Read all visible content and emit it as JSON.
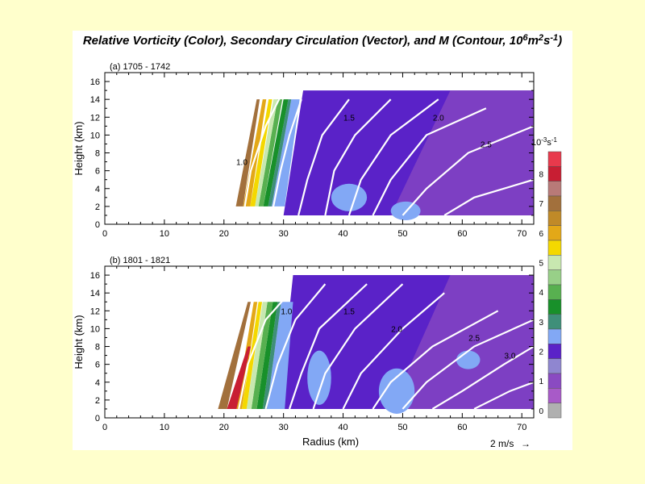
{
  "title": {
    "main": "Relative Vorticity (Color), Secondary Circulation (Vector), and M (Contour, 10",
    "exp1": "6",
    "mid": "m",
    "exp2": "2",
    "s": "s",
    "exp3": "-1",
    "end": ")"
  },
  "xlabel": "Radius (km)",
  "ylabel": "Height (km)",
  "vector_ref": {
    "label": "2 m/s",
    "arrow": "→"
  },
  "colorbar": {
    "unit_base": "10",
    "unit_exp": "-3",
    "unit_s": "s",
    "unit_s_exp": "-1",
    "levels": [
      "8",
      "7",
      "6",
      "5",
      "4",
      "3",
      "2",
      "1",
      "0"
    ],
    "colors": [
      "#e8394c",
      "#c81e33",
      "#b87a78",
      "#a2703c",
      "#c08a28",
      "#e3a818",
      "#f4d800",
      "#c8e8b0",
      "#98d088",
      "#58b050",
      "#18902a",
      "#3f8f79",
      "#82a8f5",
      "#5a22c8",
      "#8f86d0",
      "#8a4ac2",
      "#a85ac8",
      "#b0b0b0"
    ]
  },
  "chart_data": [
    {
      "type": "heatmap",
      "panel_label": "(a) 1705 - 1742",
      "xlim": [
        0,
        72
      ],
      "ylim": [
        0,
        17
      ],
      "xticks": [
        "0",
        "10",
        "20",
        "30",
        "40",
        "50",
        "60",
        "70"
      ],
      "yticks": [
        "0",
        "2",
        "4",
        "6",
        "8",
        "10",
        "12",
        "14",
        "16"
      ],
      "show_xlabel": false,
      "vorticity_bands": [
        {
          "level": "7",
          "color": "#a2703c",
          "x": [
            [
              22,
              2
            ],
            [
              25.5,
              14
            ]
          ],
          "w": [
            1.2,
            0.5
          ]
        },
        {
          "level": "6",
          "color": "#e3a818",
          "x": [
            [
              23.2,
              2
            ],
            [
              26.5,
              14
            ]
          ],
          "w": [
            1.2,
            0.6
          ]
        },
        {
          "level": "5",
          "color": "#f4d800",
          "x": [
            [
              24.4,
              2
            ],
            [
              27.5,
              14
            ]
          ],
          "w": [
            0.8,
            0.6
          ]
        },
        {
          "level": "4",
          "color": "#c8e8b0",
          "x": [
            [
              25.2,
              2
            ],
            [
              28.3,
              14
            ]
          ],
          "w": [
            0.6,
            0.7
          ]
        },
        {
          "level": "3",
          "color": "#58b050",
          "x": [
            [
              25.8,
              2
            ],
            [
              29,
              14
            ]
          ],
          "w": [
            0.8,
            0.8
          ]
        },
        {
          "level": "2.5",
          "color": "#18902a",
          "x": [
            [
              26.6,
              2
            ],
            [
              30,
              14
            ]
          ],
          "w": [
            0.8,
            0.8
          ]
        },
        {
          "level": "2",
          "color": "#3f8f79",
          "x": [
            [
              27.4,
              2
            ],
            [
              30.8,
              14
            ]
          ],
          "w": [
            0.6,
            0.5
          ]
        },
        {
          "level": "1.5",
          "color": "#82a8f5",
          "x": [
            [
              28,
              2
            ],
            [
              31.3,
              14
            ]
          ],
          "w": [
            2.2,
            1.4
          ]
        }
      ],
      "domain_top": 15,
      "m_contours": [
        {
          "label": "1.0",
          "points": [
            [
              23.5,
              2
            ],
            [
              24.5,
              6
            ],
            [
              27,
              11
            ],
            [
              30,
              15
            ]
          ],
          "label_at": [
            23,
            7
          ]
        },
        {
          "label": "",
          "points": [
            [
              28,
              1
            ],
            [
              29.5,
              6
            ],
            [
              31,
              10
            ],
            [
              33,
              14
            ]
          ]
        },
        {
          "label": "1.5",
          "points": [
            [
              32.5,
              1
            ],
            [
              34,
              5
            ],
            [
              36.5,
              10
            ],
            [
              41,
              14
            ]
          ],
          "label_at": [
            41,
            12
          ]
        },
        {
          "label": "",
          "points": [
            [
              37,
              1
            ],
            [
              38.5,
              6
            ],
            [
              42,
              10
            ],
            [
              48,
              14
            ]
          ]
        },
        {
          "label": "2.0",
          "points": [
            [
              41,
              1
            ],
            [
              43,
              5
            ],
            [
              48,
              10
            ],
            [
              56,
              14
            ]
          ],
          "label_at": [
            56,
            12
          ]
        },
        {
          "label": "",
          "points": [
            [
              45,
              1
            ],
            [
              48,
              5
            ],
            [
              54,
              10
            ],
            [
              64,
              13
            ]
          ]
        },
        {
          "label": "2.5",
          "points": [
            [
              50,
              1
            ],
            [
              54,
              4
            ],
            [
              61,
              8
            ],
            [
              72,
              11
            ]
          ],
          "label_at": [
            64,
            9
          ]
        },
        {
          "label": "",
          "points": [
            [
              57,
              1
            ],
            [
              62,
              3
            ],
            [
              72,
              5
            ]
          ]
        }
      ],
      "blue_patches": [
        [
          [
            38,
            2
          ],
          [
            44,
            4
          ]
        ],
        [
          [
            48,
            1
          ],
          [
            53,
            2
          ]
        ]
      ]
    },
    {
      "type": "heatmap",
      "panel_label": "(b) 1801 - 1821",
      "xlim": [
        0,
        72
      ],
      "ylim": [
        0,
        17
      ],
      "xticks": [
        "0",
        "10",
        "20",
        "30",
        "40",
        "50",
        "60",
        "70"
      ],
      "yticks": [
        "0",
        "2",
        "4",
        "6",
        "8",
        "10",
        "12",
        "14",
        "16"
      ],
      "show_xlabel": true,
      "vorticity_bands": [
        {
          "level": "8",
          "color": "#c81e33",
          "x": [
            [
              20.5,
              1
            ],
            [
              24,
              8
            ]
          ],
          "w": [
            1.6,
            0.5
          ]
        },
        {
          "level": "7",
          "color": "#a2703c",
          "x": [
            [
              19,
              1
            ],
            [
              24,
              13
            ]
          ],
          "w": [
            1.5,
            0.5
          ]
        },
        {
          "level": "6",
          "color": "#e3a818",
          "x": [
            [
              22,
              1
            ],
            [
              25,
              13
            ]
          ],
          "w": [
            1,
            0.6
          ]
        },
        {
          "level": "5",
          "color": "#f4d800",
          "x": [
            [
              23,
              1
            ],
            [
              25.8,
              13
            ]
          ],
          "w": [
            0.8,
            0.6
          ]
        },
        {
          "level": "4",
          "color": "#c8e8b0",
          "x": [
            [
              23.8,
              1
            ],
            [
              26.5,
              13
            ]
          ],
          "w": [
            0.8,
            0.8
          ]
        },
        {
          "level": "3",
          "color": "#58b050",
          "x": [
            [
              24.6,
              1
            ],
            [
              27.3,
              13
            ]
          ],
          "w": [
            0.9,
            0.9
          ]
        },
        {
          "level": "2.5",
          "color": "#18902a",
          "x": [
            [
              25.5,
              1
            ],
            [
              28.2,
              13
            ]
          ],
          "w": [
            1,
            0.8
          ]
        },
        {
          "level": "2",
          "color": "#3f8f79",
          "x": [
            [
              26.5,
              1
            ],
            [
              29,
              13
            ]
          ],
          "w": [
            0.7,
            0.6
          ]
        },
        {
          "level": "1.5",
          "color": "#82a8f5",
          "x": [
            [
              27.2,
              1
            ],
            [
              29.6,
              13
            ]
          ],
          "w": [
            3,
            2
          ]
        }
      ],
      "domain_top": 16,
      "m_contours": [
        {
          "label": "1.0",
          "points": [
            [
              22.5,
              1
            ],
            [
              24,
              6
            ],
            [
              27,
              11
            ],
            [
              31,
              14
            ]
          ],
          "label_at": [
            30.5,
            12
          ]
        },
        {
          "label": "",
          "points": [
            [
              27,
              1
            ],
            [
              29,
              6
            ],
            [
              32,
              11
            ],
            [
              37,
              15
            ]
          ]
        },
        {
          "label": "1.5",
          "points": [
            [
              31,
              1
            ],
            [
              33,
              5
            ],
            [
              36,
              10
            ],
            [
              44,
              15
            ]
          ],
          "label_at": [
            41,
            12
          ]
        },
        {
          "label": "",
          "points": [
            [
              35,
              1
            ],
            [
              37,
              5
            ],
            [
              42,
              10
            ],
            [
              50,
              15
            ]
          ]
        },
        {
          "label": "2.0",
          "points": [
            [
              40,
              1
            ],
            [
              43,
              5
            ],
            [
              50,
              10
            ],
            [
              57,
              14
            ]
          ],
          "label_at": [
            49,
            10
          ]
        },
        {
          "label": "",
          "points": [
            [
              45,
              1
            ],
            [
              48,
              4
            ],
            [
              55,
              8
            ],
            [
              66,
              12
            ]
          ]
        },
        {
          "label": "2.5",
          "points": [
            [
              50,
              1
            ],
            [
              54,
              4
            ],
            [
              62,
              8
            ],
            [
              72,
              11
            ]
          ],
          "label_at": [
            62,
            9
          ]
        },
        {
          "label": "3.0",
          "points": [
            [
              55,
              1
            ],
            [
              60,
              3
            ],
            [
              67,
              6
            ],
            [
              72,
              8
            ]
          ],
          "label_at": [
            68,
            7
          ]
        },
        {
          "label": "",
          "points": [
            [
              62,
              1
            ],
            [
              68,
              3
            ],
            [
              72,
              4
            ]
          ]
        }
      ],
      "blue_patches": [
        [
          [
            34,
            2
          ],
          [
            38,
            7
          ]
        ],
        [
          [
            46,
            1
          ],
          [
            52,
            5
          ]
        ],
        [
          [
            59,
            6
          ],
          [
            63,
            7
          ]
        ]
      ]
    }
  ]
}
